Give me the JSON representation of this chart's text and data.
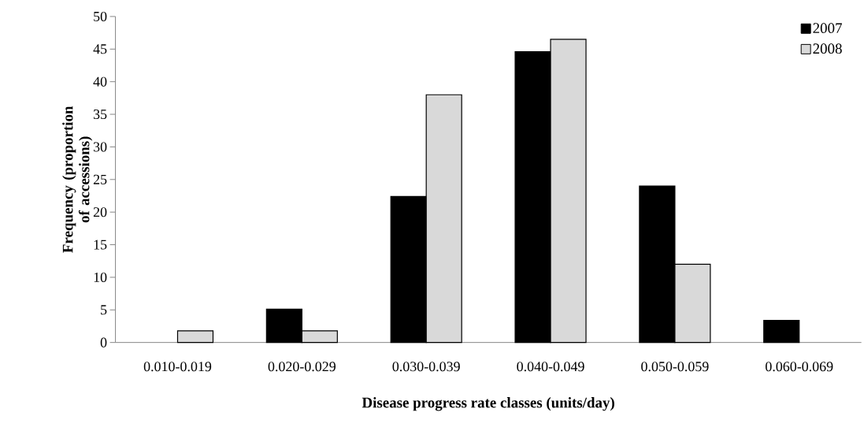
{
  "chart_data": {
    "type": "bar",
    "xlabel": "Disease progress rate classes  (units/day)",
    "ylabel": "Frequency (proportion of accessions)",
    "categories": [
      "0.010-0.019",
      "0.020-0.029",
      "0.030-0.039",
      "0.040-0.049",
      "0.050-0.059",
      "0.060-0.069"
    ],
    "series": [
      {
        "name": "2007",
        "color": "#000000",
        "values": [
          null,
          5.1,
          22.4,
          44.6,
          24.0,
          3.4
        ]
      },
      {
        "name": "2008",
        "color": "#d9d9d9",
        "values": [
          1.8,
          1.8,
          38,
          46.5,
          12.0,
          null
        ]
      }
    ],
    "ylim": [
      0,
      50
    ],
    "yticks": [
      0,
      5,
      10,
      15,
      20,
      25,
      30,
      35,
      40,
      45,
      50
    ],
    "grid": false,
    "legend": "top right"
  }
}
